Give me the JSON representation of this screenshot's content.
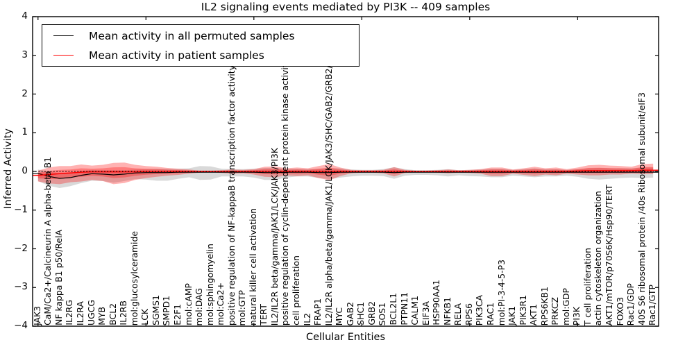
{
  "title": "IL2 signaling events mediated by PI3K -- 409 samples",
  "axes": {
    "xlabel": "Cellular Entities",
    "ylabel": "Inferred Activity",
    "ytick_labels": [
      "4",
      "3",
      "2",
      "1",
      "0",
      "−1",
      "−2",
      "−3",
      "−4"
    ],
    "ytick_values": [
      4,
      3,
      2,
      1,
      0,
      -1,
      -2,
      -3,
      -4
    ],
    "xtick_major_indices": [
      0,
      10,
      20,
      30,
      40,
      50
    ]
  },
  "legend": {
    "position": "upper left",
    "items": [
      {
        "label": "Mean activity in all permuted samples",
        "color": "#000000"
      },
      {
        "label": "Mean activity in patient samples",
        "color": "#ff0000"
      }
    ]
  },
  "colors": {
    "permuted_line": "#000000",
    "patient_line": "#ff0000",
    "permuted_band": "rgba(0,0,0,0.15)",
    "patient_band": "rgba(255,0,0,0.30)",
    "baseline": "#000000",
    "spine": "#000000"
  },
  "chart_data": {
    "type": "line",
    "title": "IL2 signaling events mediated by PI3K -- 409 samples",
    "xlabel": "Cellular Entities",
    "ylabel": "Inferred Activity",
    "ylim": [
      -4,
      4
    ],
    "baseline": 0,
    "grid": false,
    "legend_position": "upper left",
    "categories": [
      "JAK3",
      "CaM/Ca2+/Calcineurin A alpha-beta B1",
      "NF kappa B1 p50/RelA",
      "IL2RG",
      "IL2RA",
      "UGCG",
      "MYB",
      "BCL2",
      "IL2RB",
      "mol:glucosylceramide",
      "LCK",
      "SGMS1",
      "SMPD1",
      "E2F1",
      "mol:cAMP",
      "mol:DAG",
      "mol:sphingomyelin",
      "mol:Ca2+",
      "positive regulation of NF-kappaB transcription factor activity",
      "mol:GTP",
      "natural killer cell activation",
      "TERT",
      "IL2/IL2R beta/gamma/JAK1/LCK/JAK3/PI3K",
      "positive regulation of cyclin-dependent protein kinase activity",
      "cell proliferation",
      "IL2",
      "FRAP1",
      "IL2/IL2R alpha/beta/gamma/JAK1/LCK/JAK3/SHC/GAB2/GRB2/SOS1",
      "MYC",
      "GAB2",
      "SHC1",
      "GRB2",
      "SOS1",
      "BCL2L1",
      "PTPN11",
      "CALM1",
      "EIF3A",
      "HSP90AA1",
      "NFKB1",
      "RELA",
      "RPS6",
      "PIK3CA",
      "RAC1",
      "mol:PI-3-4-5-P3",
      "JAK1",
      "PIK3R1",
      "AKT1",
      "RPS6KB1",
      "PRKCZ",
      "mol:GDP",
      "PI3K",
      "T cell proliferation",
      "actin cytoskeleton organization",
      "AKT1/mTOR/p70S6K/Hsp90/TERT",
      "FOXO3",
      "Rac1/GDP",
      "40S S6 ribosomal protein /40s Ribosomal subunit/eIF3",
      "Rac1/GTP"
    ],
    "series": [
      {
        "name": "Mean activity in all permuted samples",
        "color": "#000000",
        "values": [
          -0.05,
          -0.13,
          -0.18,
          -0.16,
          -0.1,
          -0.06,
          -0.07,
          -0.09,
          -0.07,
          -0.04,
          -0.03,
          -0.03,
          -0.03,
          -0.02,
          -0.02,
          -0.02,
          -0.02,
          -0.02,
          -0.02,
          -0.02,
          -0.02,
          -0.03,
          -0.03,
          -0.02,
          -0.02,
          -0.02,
          -0.03,
          -0.03,
          -0.02,
          -0.02,
          -0.02,
          -0.02,
          -0.02,
          -0.03,
          -0.02,
          -0.02,
          -0.02,
          -0.02,
          -0.02,
          -0.02,
          -0.02,
          -0.02,
          -0.02,
          -0.02,
          -0.02,
          -0.02,
          -0.02,
          -0.02,
          -0.02,
          -0.02,
          -0.02,
          -0.02,
          -0.02,
          -0.02,
          -0.02,
          -0.02,
          -0.02,
          -0.02
        ],
        "band_upper_offset": [
          0.1,
          0.13,
          0.13,
          0.12,
          0.11,
          0.1,
          0.1,
          0.12,
          0.1,
          0.09,
          0.09,
          0.1,
          0.1,
          0.09,
          0.1,
          0.16,
          0.15,
          0.09,
          0.08,
          0.08,
          0.09,
          0.12,
          0.12,
          0.09,
          0.09,
          0.08,
          0.1,
          0.12,
          0.1,
          0.07,
          0.06,
          0.06,
          0.08,
          0.14,
          0.08,
          0.05,
          0.05,
          0.06,
          0.08,
          0.05,
          0.06,
          0.07,
          0.09,
          0.09,
          0.06,
          0.08,
          0.1,
          0.08,
          0.08,
          0.06,
          0.08,
          0.1,
          0.11,
          0.1,
          0.1,
          0.1,
          0.12,
          0.12
        ],
        "band_lower_offset": [
          0.2,
          0.24,
          0.25,
          0.22,
          0.2,
          0.18,
          0.18,
          0.2,
          0.18,
          0.16,
          0.18,
          0.21,
          0.21,
          0.17,
          0.13,
          0.2,
          0.19,
          0.11,
          0.11,
          0.11,
          0.14,
          0.19,
          0.19,
          0.14,
          0.11,
          0.11,
          0.14,
          0.17,
          0.14,
          0.11,
          0.09,
          0.09,
          0.1,
          0.16,
          0.09,
          0.07,
          0.07,
          0.08,
          0.11,
          0.08,
          0.1,
          0.11,
          0.13,
          0.13,
          0.09,
          0.11,
          0.13,
          0.11,
          0.11,
          0.09,
          0.12,
          0.17,
          0.19,
          0.17,
          0.15,
          0.14,
          0.15,
          0.14
        ]
      },
      {
        "name": "Mean activity in patient samples",
        "color": "#ff0000",
        "values": [
          -0.1,
          -0.08,
          -0.06,
          -0.04,
          -0.02,
          -0.01,
          -0.01,
          -0.01,
          -0.01,
          -0.01,
          0,
          0,
          0,
          0,
          0,
          0,
          0,
          0,
          0,
          0,
          0,
          0,
          0,
          0,
          0,
          0,
          0,
          0,
          0,
          0,
          0,
          0,
          0,
          0,
          0,
          0,
          0,
          0,
          0,
          0,
          0,
          0,
          0,
          0,
          0,
          0,
          0,
          0,
          0,
          0,
          0.01,
          0.02,
          0.02,
          0.02,
          0.02,
          0.02,
          0.03,
          0.03
        ],
        "band_upper_offset": [
          0.12,
          0.18,
          0.2,
          0.18,
          0.2,
          0.16,
          0.18,
          0.23,
          0.24,
          0.18,
          0.14,
          0.12,
          0.09,
          0.07,
          0.05,
          0.02,
          0.02,
          0.03,
          0.05,
          0.04,
          0.06,
          0.12,
          0.13,
          0.08,
          0.1,
          0.08,
          0.14,
          0.19,
          0.1,
          0.04,
          0.03,
          0.03,
          0.04,
          0.11,
          0.04,
          0.02,
          0.02,
          0.03,
          0.05,
          0.03,
          0.04,
          0.06,
          0.1,
          0.1,
          0.05,
          0.08,
          0.12,
          0.08,
          0.1,
          0.06,
          0.09,
          0.14,
          0.15,
          0.13,
          0.12,
          0.1,
          0.16,
          0.17
        ],
        "band_lower_offset": [
          0.16,
          0.23,
          0.27,
          0.24,
          0.24,
          0.21,
          0.24,
          0.32,
          0.29,
          0.21,
          0.17,
          0.14,
          0.11,
          0.09,
          0.06,
          0.03,
          0.02,
          0.04,
          0.06,
          0.05,
          0.08,
          0.14,
          0.15,
          0.1,
          0.12,
          0.1,
          0.17,
          0.23,
          0.12,
          0.05,
          0.03,
          0.03,
          0.05,
          0.13,
          0.04,
          0.02,
          0.02,
          0.03,
          0.05,
          0.03,
          0.04,
          0.06,
          0.12,
          0.12,
          0.06,
          0.09,
          0.12,
          0.08,
          0.1,
          0.06,
          0.09,
          0.12,
          0.12,
          0.1,
          0.1,
          0.08,
          0.1,
          0.1
        ]
      }
    ]
  }
}
